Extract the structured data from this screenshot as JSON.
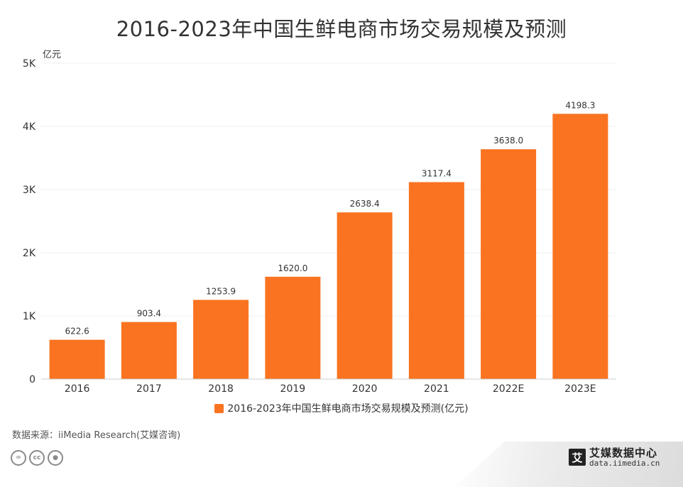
{
  "title": "2016-2023年中国生鲜电商市场交易规模及预测",
  "chart_data": {
    "type": "bar",
    "title": "2016-2023年中国生鲜电商市场交易规模及预测",
    "unit_label": "亿元",
    "categories": [
      "2016",
      "2017",
      "2018",
      "2019",
      "2020",
      "2021",
      "2022E",
      "2023E"
    ],
    "series": [
      {
        "name": "2016-2023年中国生鲜电商市场交易规模及预测(亿元)",
        "values": [
          622.6,
          903.4,
          1253.9,
          1620.0,
          2638.4,
          3117.4,
          3638.0,
          4198.3
        ],
        "labels": [
          "622.6",
          "903.4",
          "1253.9",
          "1620.0",
          "2638.4",
          "3117.4",
          "3638.0",
          "4198.3"
        ]
      }
    ],
    "y_ticks": [
      0,
      1000,
      2000,
      3000,
      4000,
      5000
    ],
    "y_tick_labels": [
      "0",
      "1K",
      "2K",
      "3K",
      "4K",
      "5K"
    ],
    "ylim": [
      0,
      5000
    ],
    "grid": true,
    "legend_position": "bottom"
  },
  "legend_label": "2016-2023年中国生鲜电商市场交易规模及预测(亿元)",
  "source": "数据来源：iiMedia Research(艾媒咨询)",
  "license_icons": [
    "equal-icon",
    "cc-icon",
    "person-icon"
  ],
  "brand": {
    "logo_char": "艾",
    "name": "艾媒数据中心",
    "url": "data.iimedia.cn"
  },
  "colors": {
    "bar": "#FA7320",
    "grid": "#EFEFEF",
    "axis": "#CCCCCC"
  }
}
